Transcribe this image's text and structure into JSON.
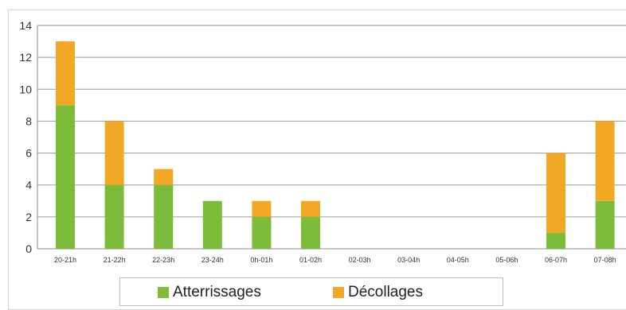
{
  "chart_data": {
    "type": "bar",
    "stacked": true,
    "categories": [
      "20-21h",
      "21-22h",
      "22-23h",
      "23-24h",
      "0h-01h",
      "01-02h",
      "02-03h",
      "03-04h",
      "04-05h",
      "05-06h",
      "06-07h",
      "07-08h"
    ],
    "series": [
      {
        "name": "Atterrissages",
        "color": "#7dbb3a",
        "values": [
          9,
          4,
          4,
          3,
          2,
          2,
          0,
          0,
          0,
          0,
          1,
          3
        ]
      },
      {
        "name": "Décollages",
        "color": "#f0a825",
        "values": [
          4,
          4,
          1,
          0,
          1,
          1,
          0,
          0,
          0,
          0,
          5,
          5
        ]
      }
    ],
    "y_ticks": [
      "0",
      "2",
      "4",
      "6",
      "8",
      "10",
      "12",
      "14"
    ],
    "ylim": [
      0,
      14
    ],
    "grid": true,
    "legend_position": "bottom"
  }
}
